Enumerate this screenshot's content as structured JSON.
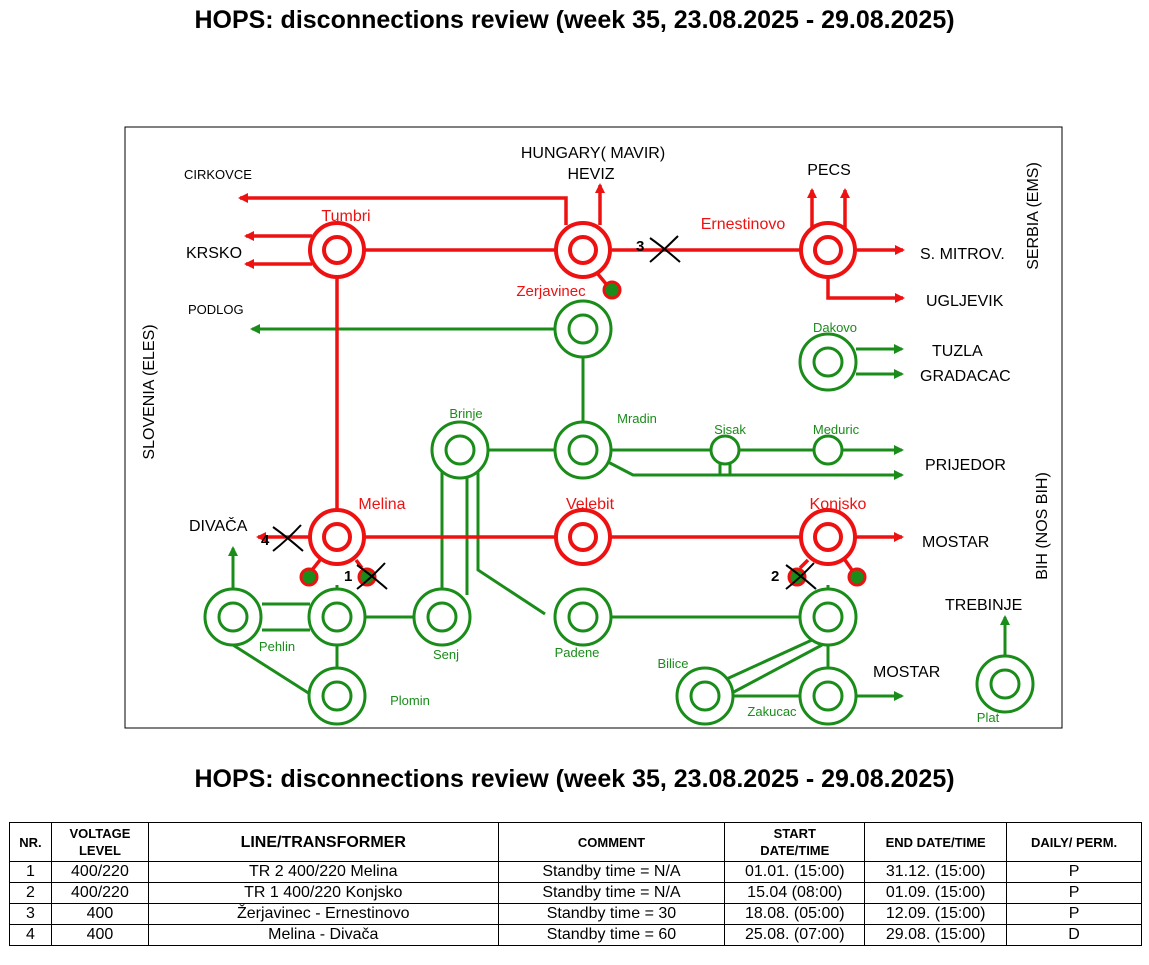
{
  "title_top": "HOPS: disconnections review (week 35, 23.08.2025 - 29.08.2025)",
  "title_bottom": "HOPS: disconnections review (week 35, 23.08.2025 - 29.08.2025)",
  "colors": {
    "line_400kv": "#ee1111",
    "line_220kv": "#1a8c1a",
    "frame": "#000000"
  },
  "diagram": {
    "borders": {
      "hungary": "HUNGARY( MAVIR)",
      "slovenia": "SLOVENIA (ELES)",
      "serbia": "SERBIA (EMS)",
      "bih": "BIH (NOS BIH)"
    },
    "external": {
      "cirkovce": "CIRKOVCE",
      "heviz": "HEVIZ",
      "pecs": "PECS",
      "krsko": "KRSKO",
      "s_mitrov": "S. MITROV.",
      "ugljevik": "UGLJEVIK",
      "podlog": "PODLOG",
      "tuzla": "TUZLA",
      "gradacac": "GRADACAC",
      "prijedor": "PRIJEDOR",
      "divaca": "DIVAČA",
      "mostar_400": "MOSTAR",
      "trebinje": "TREBINJE",
      "mostar_220": "MOSTAR"
    },
    "stations": {
      "tumbri": "Tumbri",
      "ernestinovo": "Ernestinovo",
      "zerjavinec": "Zerjavinec",
      "dakovo": "Dakovo",
      "brinje": "Brinje",
      "mradin": "Mradin",
      "sisak": "Sisak",
      "meduric": "Meduric",
      "melina": "Melina",
      "velebit": "Velebit",
      "konjsko": "Konjsko",
      "pehlin": "Pehlin",
      "senj": "Senj",
      "padene": "Padene",
      "plomin": "Plomin",
      "bilice": "Bilice",
      "zakucac": "Zakucac",
      "plat": "Plat"
    },
    "markers": {
      "m1": "1",
      "m2": "2",
      "m3": "3",
      "m4": "4"
    }
  },
  "table": {
    "headers": {
      "nr": "NR.",
      "voltage_1": "VOLTAGE",
      "voltage_2": "LEVEL",
      "line": "LINE/TRANSFORMER",
      "comment": "COMMENT",
      "start_1": "START",
      "start_2": "DATE/TIME",
      "end": "END DATE/TIME",
      "daily": "DAILY/ PERM."
    },
    "rows": [
      {
        "nr": "1",
        "voltage": "400/220",
        "line": "TR 2 400/220 Melina",
        "comment": "Standby time = N/A",
        "start": "01.01. (15:00)",
        "end": "31.12. (15:00)",
        "type": "P"
      },
      {
        "nr": "2",
        "voltage": "400/220",
        "line": "TR 1 400/220 Konjsko",
        "comment": "Standby time = N/A",
        "start": "15.04 (08:00)",
        "end": "01.09. (15:00)",
        "type": "P"
      },
      {
        "nr": "3",
        "voltage": "400",
        "line": "Žerjavinec - Ernestinovo",
        "comment": "Standby time = 30",
        "start": "18.08. (05:00)",
        "end": "12.09. (15:00)",
        "type": "P"
      },
      {
        "nr": "4",
        "voltage": "400",
        "line": "Melina - Divača",
        "comment": "Standby time = 60",
        "start": "25.08. (07:00)",
        "end": "29.08. (15:00)",
        "type": "D"
      }
    ]
  }
}
